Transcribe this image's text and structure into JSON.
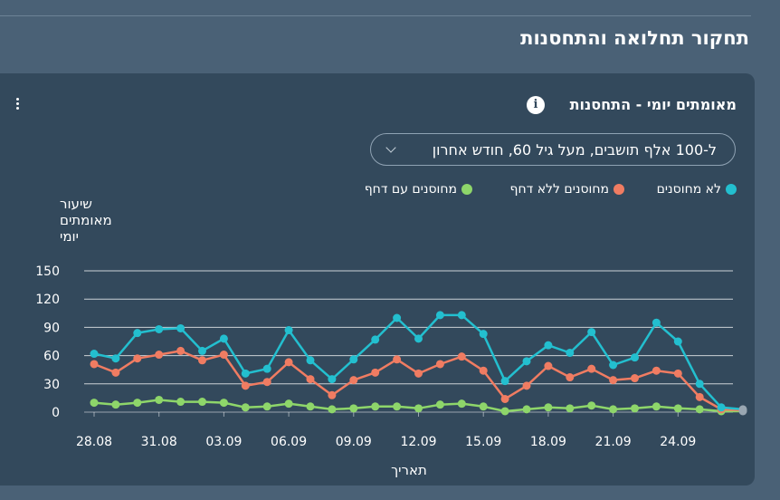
{
  "page": {
    "section_title": "תחקור תחלואה והתחסנות"
  },
  "card": {
    "title": "מאומתים יומי - התחסנות",
    "info_icon": "info-icon",
    "menu_icon": "kebab-menu-icon",
    "filter_value": "ל-100 אלף תושבים, מעל גיל 60, חודש אחרון"
  },
  "colors": {
    "unvaccinated": "#23bfcf",
    "vaccinated_no_booster": "#f07c62",
    "vaccinated_booster": "#8ed66a",
    "grid": "#ffffff",
    "axis_text": "#ffffff"
  },
  "chart_data": {
    "type": "line",
    "ylabel": "שיעור מאומתים יומי",
    "xlabel": "תאריך",
    "ylim": [
      0,
      150
    ],
    "yticks": [
      0,
      30,
      60,
      90,
      120,
      150
    ],
    "x_tick_labels": [
      "28.08",
      "31.08",
      "03.09",
      "06.09",
      "09.09",
      "12.09",
      "15.09",
      "18.09",
      "21.09",
      "24.09"
    ],
    "x_tick_indices": [
      0,
      3,
      6,
      9,
      12,
      15,
      18,
      21,
      24,
      27
    ],
    "x_count": 31,
    "legend_position": "top",
    "series": [
      {
        "name": "לא מחוסנים",
        "color_key": "unvaccinated",
        "values": [
          62,
          57,
          84,
          88,
          89,
          65,
          78,
          41,
          46,
          87,
          55,
          35,
          56,
          77,
          100,
          78,
          103,
          103,
          83,
          33,
          54,
          71,
          63,
          85,
          50,
          58,
          95,
          75,
          30,
          5,
          3
        ]
      },
      {
        "name": "מחוסנים ללא דחף",
        "color_key": "vaccinated_no_booster",
        "values": [
          51,
          42,
          57,
          61,
          65,
          55,
          61,
          28,
          32,
          53,
          35,
          18,
          34,
          42,
          56,
          41,
          51,
          59,
          44,
          14,
          28,
          49,
          37,
          46,
          34,
          36,
          44,
          41,
          16,
          3,
          2
        ]
      },
      {
        "name": "מחוסנים עם דחף",
        "color_key": "vaccinated_booster",
        "values": [
          10,
          8,
          10,
          13,
          11,
          11,
          10,
          5,
          6,
          9,
          6,
          3,
          4,
          6,
          6,
          4,
          8,
          9,
          6,
          1,
          3,
          5,
          4,
          7,
          3,
          4,
          6,
          4,
          3,
          1,
          1
        ]
      }
    ]
  }
}
